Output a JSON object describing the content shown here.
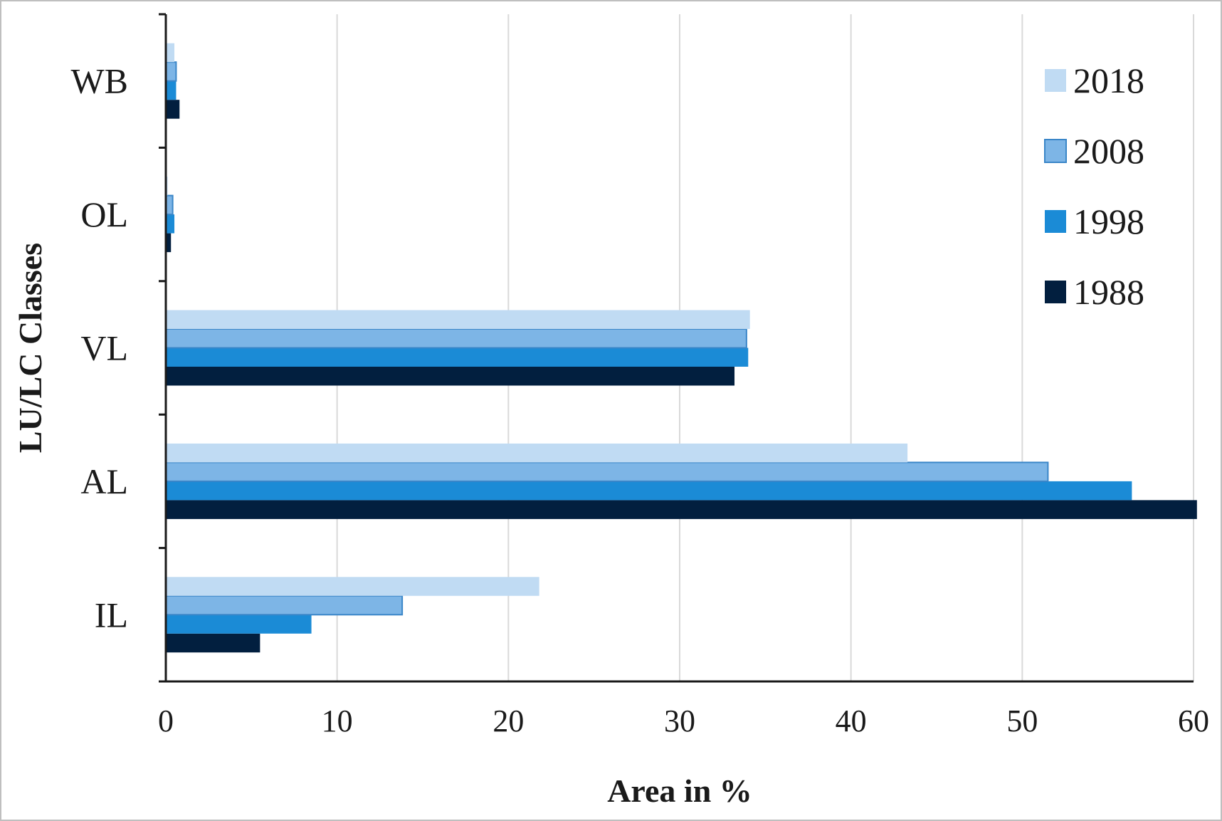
{
  "chart_data": {
    "type": "bar",
    "orientation": "horizontal",
    "title": "",
    "xlabel": "Area in %",
    "ylabel": "LU/LC Classes",
    "xlim": [
      0,
      60
    ],
    "xticks": [
      0,
      10,
      20,
      30,
      40,
      50,
      60
    ],
    "categories": [
      "IL",
      "AL",
      "VL",
      "OL",
      "WB"
    ],
    "series": [
      {
        "name": "1988",
        "color": "#021f3f",
        "values": [
          5.5,
          60.2,
          33.2,
          0.3,
          0.8
        ]
      },
      {
        "name": "1998",
        "color": "#1b8bd6",
        "values": [
          8.5,
          56.4,
          34.0,
          0.5,
          0.6
        ]
      },
      {
        "name": "2008",
        "color": "#7db5e6",
        "values": [
          13.8,
          51.5,
          33.9,
          0.4,
          0.6
        ]
      },
      {
        "name": "2018",
        "color": "#c0dbf3",
        "values": [
          21.8,
          43.3,
          34.1,
          0.1,
          0.5
        ]
      }
    ],
    "legend": {
      "position": "top-right",
      "order": [
        "2018",
        "2008",
        "1998",
        "1988"
      ]
    },
    "grid": {
      "x": true,
      "y": false
    }
  }
}
